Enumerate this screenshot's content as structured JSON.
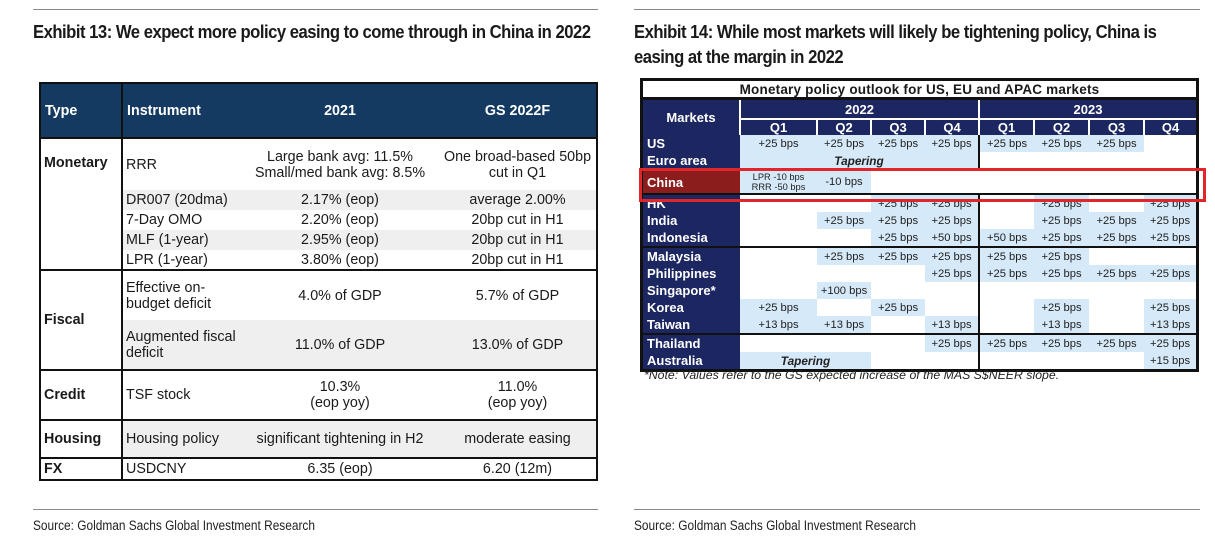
{
  "left": {
    "title": "Exhibit 13: We expect more policy easing to come through in China in 2022",
    "headers": {
      "type": "Type",
      "instrument": "Instrument",
      "y2021": "2021",
      "y2022": "GS 2022F"
    },
    "groups": [
      {
        "type": "Monetary",
        "rows": [
          {
            "instrument": "RRR",
            "y2021": [
              "Large bank avg: 11.5%",
              "Small/med bank avg: 8.5%"
            ],
            "y2022": [
              "One broad-based 50bp",
              "cut in Q1"
            ],
            "shade": false
          },
          {
            "instrument": "DR007 (20dma)",
            "y2021": [
              "2.17% (eop)"
            ],
            "y2022": [
              "average 2.00%"
            ],
            "shade": true
          },
          {
            "instrument": "7-Day OMO",
            "y2021": [
              "2.20% (eop)"
            ],
            "y2022": [
              "20bp cut in H1"
            ],
            "shade": false
          },
          {
            "instrument": "MLF (1-year)",
            "y2021": [
              "2.95% (eop)"
            ],
            "y2022": [
              "20bp cut in H1"
            ],
            "shade": true
          },
          {
            "instrument": "LPR (1-year)",
            "y2021": [
              "3.80% (eop)"
            ],
            "y2022": [
              "20bp cut in H1"
            ],
            "shade": false
          }
        ]
      },
      {
        "type": "Fiscal",
        "rows": [
          {
            "instrument": "Effective on-budget deficit",
            "y2021": [
              "4.0% of GDP"
            ],
            "y2022": [
              "5.7% of GDP"
            ],
            "shade": false
          },
          {
            "instrument": "Augmented fiscal deficit",
            "y2021": [
              "11.0% of GDP"
            ],
            "y2022": [
              "13.0% of GDP"
            ],
            "shade": true
          }
        ]
      },
      {
        "type": "Credit",
        "rows": [
          {
            "instrument": "TSF stock",
            "y2021": [
              "10.3%",
              "(eop yoy)"
            ],
            "y2022": [
              "11.0%",
              "(eop yoy)"
            ],
            "shade": false
          }
        ]
      },
      {
        "type": "Housing",
        "rows": [
          {
            "instrument": "Housing policy",
            "y2021": [
              "significant tightening in H2"
            ],
            "y2022": [
              "moderate easing"
            ],
            "shade": true
          }
        ]
      },
      {
        "type": "FX",
        "rows": [
          {
            "instrument": "USDCNY",
            "y2021": [
              "6.35 (eop)"
            ],
            "y2022": [
              "6.20 (12m)"
            ],
            "shade": false
          }
        ]
      }
    ],
    "source": "Source: Goldman Sachs Global Investment Research"
  },
  "right": {
    "title": "Exhibit 14: While most markets will likely be tightening policy, China is easing at the margin in 2022",
    "table_title": "Monetary policy outlook for US, EU and APAC markets",
    "markets_header": "Markets",
    "years": [
      "2022",
      "2023"
    ],
    "quarters": [
      "Q1",
      "Q2",
      "Q3",
      "Q4",
      "Q1",
      "Q2",
      "Q3",
      "Q4"
    ],
    "rows": [
      {
        "market": "US",
        "cells": [
          "+25 bps",
          "+25 bps",
          "+25 bps",
          "+25 bps",
          "+25 bps",
          "+25 bps",
          "+25 bps",
          ""
        ],
        "block_start": false
      },
      {
        "market": "Euro area",
        "span": {
          "text": "Tapering",
          "from": 0,
          "count": 4
        },
        "cells": [
          "",
          "",
          "",
          "",
          "",
          "",
          "",
          ""
        ],
        "block_start": false
      },
      {
        "market": "China",
        "highlight": true,
        "cells": [
          "LPR -10 bps|RRR -50 bps",
          "-10 bps",
          "",
          "",
          "",
          "",
          "",
          ""
        ],
        "block_start": true
      },
      {
        "market": "HK",
        "cells": [
          "",
          "",
          "+25 bps",
          "+25 bps",
          "",
          "+25 bps",
          "",
          "+25 bps"
        ],
        "block_start": true
      },
      {
        "market": "India",
        "cells": [
          "",
          "+25 bps",
          "+25 bps",
          "+25 bps",
          "",
          "+25 bps",
          "+25 bps",
          "+25 bps"
        ],
        "block_start": false
      },
      {
        "market": "Indonesia",
        "cells": [
          "",
          "",
          "+25 bps",
          "+50 bps",
          "+50 bps",
          "+25 bps",
          "+25 bps",
          "+25 bps"
        ],
        "block_start": false
      },
      {
        "market": "Malaysia",
        "cells": [
          "",
          "+25 bps",
          "+25 bps",
          "+25 bps",
          "+25 bps",
          "+25 bps",
          "",
          ""
        ],
        "block_start": true
      },
      {
        "market": "Philippines",
        "cells": [
          "",
          "",
          "",
          "+25 bps",
          "+25 bps",
          "+25 bps",
          "+25 bps",
          "+25 bps"
        ],
        "block_start": false
      },
      {
        "market": "Singapore*",
        "cells": [
          "",
          "+100 bps",
          "",
          "",
          "",
          "",
          "",
          ""
        ],
        "block_start": false
      },
      {
        "market": "Korea",
        "cells": [
          "+25 bps",
          "",
          "+25 bps",
          "",
          "",
          "+25 bps",
          "",
          "+25 bps"
        ],
        "block_start": false
      },
      {
        "market": "Taiwan",
        "cells": [
          "+13 bps",
          "+13 bps",
          "",
          "+13 bps",
          "",
          "+13 bps",
          "",
          "+13 bps"
        ],
        "block_start": false
      },
      {
        "market": "Thailand",
        "cells": [
          "",
          "",
          "",
          "+25 bps",
          "+25 bps",
          "+25 bps",
          "+25 bps",
          "+25 bps"
        ],
        "block_start": true
      },
      {
        "market": "Australia",
        "span": {
          "text": "Tapering",
          "from": 0,
          "count": 2
        },
        "cells": [
          "",
          "",
          "",
          "",
          "",
          "",
          "",
          "+15 bps"
        ],
        "block_start": false
      }
    ],
    "note": "*Note: Values refer to the GS expected increase of the MAS S$NEER slope.",
    "source": "Source: Goldman Sachs Global Investment Research"
  }
}
